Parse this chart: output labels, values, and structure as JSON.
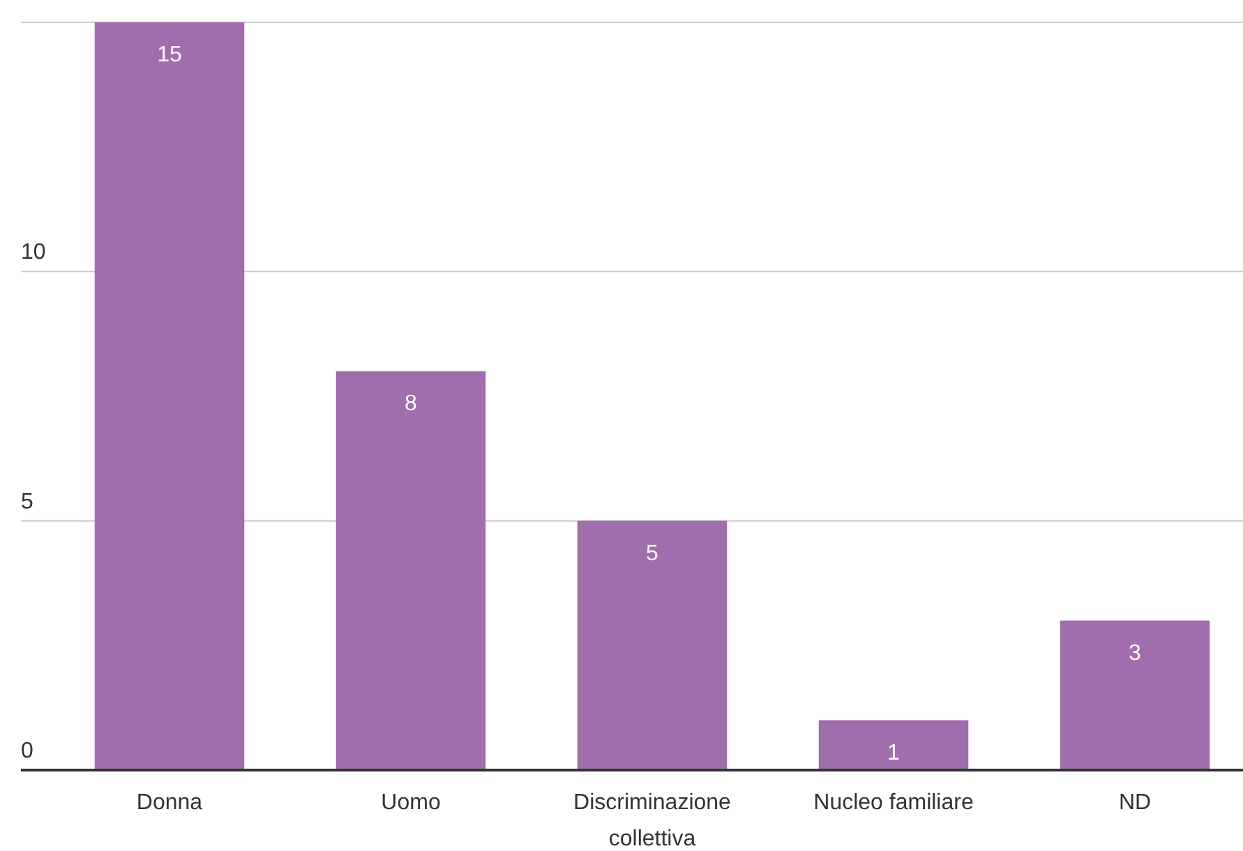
{
  "chart_data": {
    "type": "bar",
    "categories": [
      "Donna",
      "Uomo",
      "Discriminazione collettiva",
      "Nucleo familiare",
      "ND"
    ],
    "values": [
      15,
      8,
      5,
      1,
      3
    ],
    "color": "#a06dad",
    "ylim": [
      0,
      15
    ],
    "yticks": [
      0,
      5,
      10,
      {
        "value": 15,
        "label": null
      }
    ],
    "grid": "y",
    "data_labels": true
  }
}
